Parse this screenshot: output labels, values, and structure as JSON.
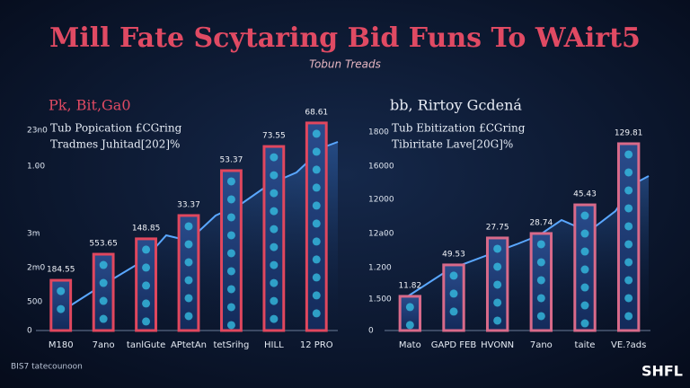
{
  "header": {
    "title": "Mill Fate Scytaring Bid Funs To WAirt5",
    "subtitle": "Tobun Treads"
  },
  "chart_data": [
    {
      "type": "bar",
      "title": "Pk, Bit,Ga0",
      "subtitle": [
        "Tub Popication £CGring",
        "Tradmes Juhitad[202]%"
      ],
      "categories": [
        "M180",
        "7ano",
        "tanlGute",
        "APtetAn",
        "tetSrihg",
        "HILL",
        "12 PRO"
      ],
      "values": [
        23.5,
        35.7,
        42.9,
        53.8,
        74.8,
        86.1,
        97.1
      ],
      "annotations": [
        "184.55",
        "553.65",
        "148.85",
        "33.37",
        "53.37",
        "73.55",
        "68.61"
      ],
      "color": "#e0475e",
      "ylim": [
        0,
        100
      ],
      "yticks": [
        0,
        {
          "value": 13.4,
          "label": "500"
        },
        {
          "value": 29.4,
          "label": "2m0"
        },
        {
          "value": 45.4,
          "label": "3m"
        },
        {
          "value": 76.9,
          "label": "1.00"
        },
        {
          "value": 93.7,
          "label": "23n0"
        }
      ]
    },
    {
      "type": "bar",
      "title": "bb, Rirtoy Gcdená",
      "subtitle": [
        "Tub Ebitization £CGring",
        "Tibiritate Lave[20G]%"
      ],
      "categories": [
        "Mato",
        "GAPD FEB",
        "HVONN",
        "7ano",
        "taite",
        "VE.?ads"
      ],
      "values": [
        16,
        30.7,
        43.3,
        45.4,
        58.8,
        87.4
      ],
      "annotations": [
        "11.82",
        "49.53",
        "27.75",
        "28.74",
        "45.43",
        "129.81"
      ],
      "color": "#d86a8a",
      "ylim": [
        0,
        100
      ],
      "yticks": [
        0,
        {
          "value": 14.7,
          "label": "1.500"
        },
        {
          "value": 29.4,
          "label": "1.200"
        },
        {
          "value": 45.4,
          "label": "12a00"
        },
        {
          "value": 61.3,
          "label": "12000"
        },
        {
          "value": 76.9,
          "label": "16000"
        },
        {
          "value": 92.9,
          "label": "1800"
        }
      ]
    }
  ],
  "footer": {
    "note": "BIS7 tatecounoon",
    "logo": "SHFL"
  }
}
